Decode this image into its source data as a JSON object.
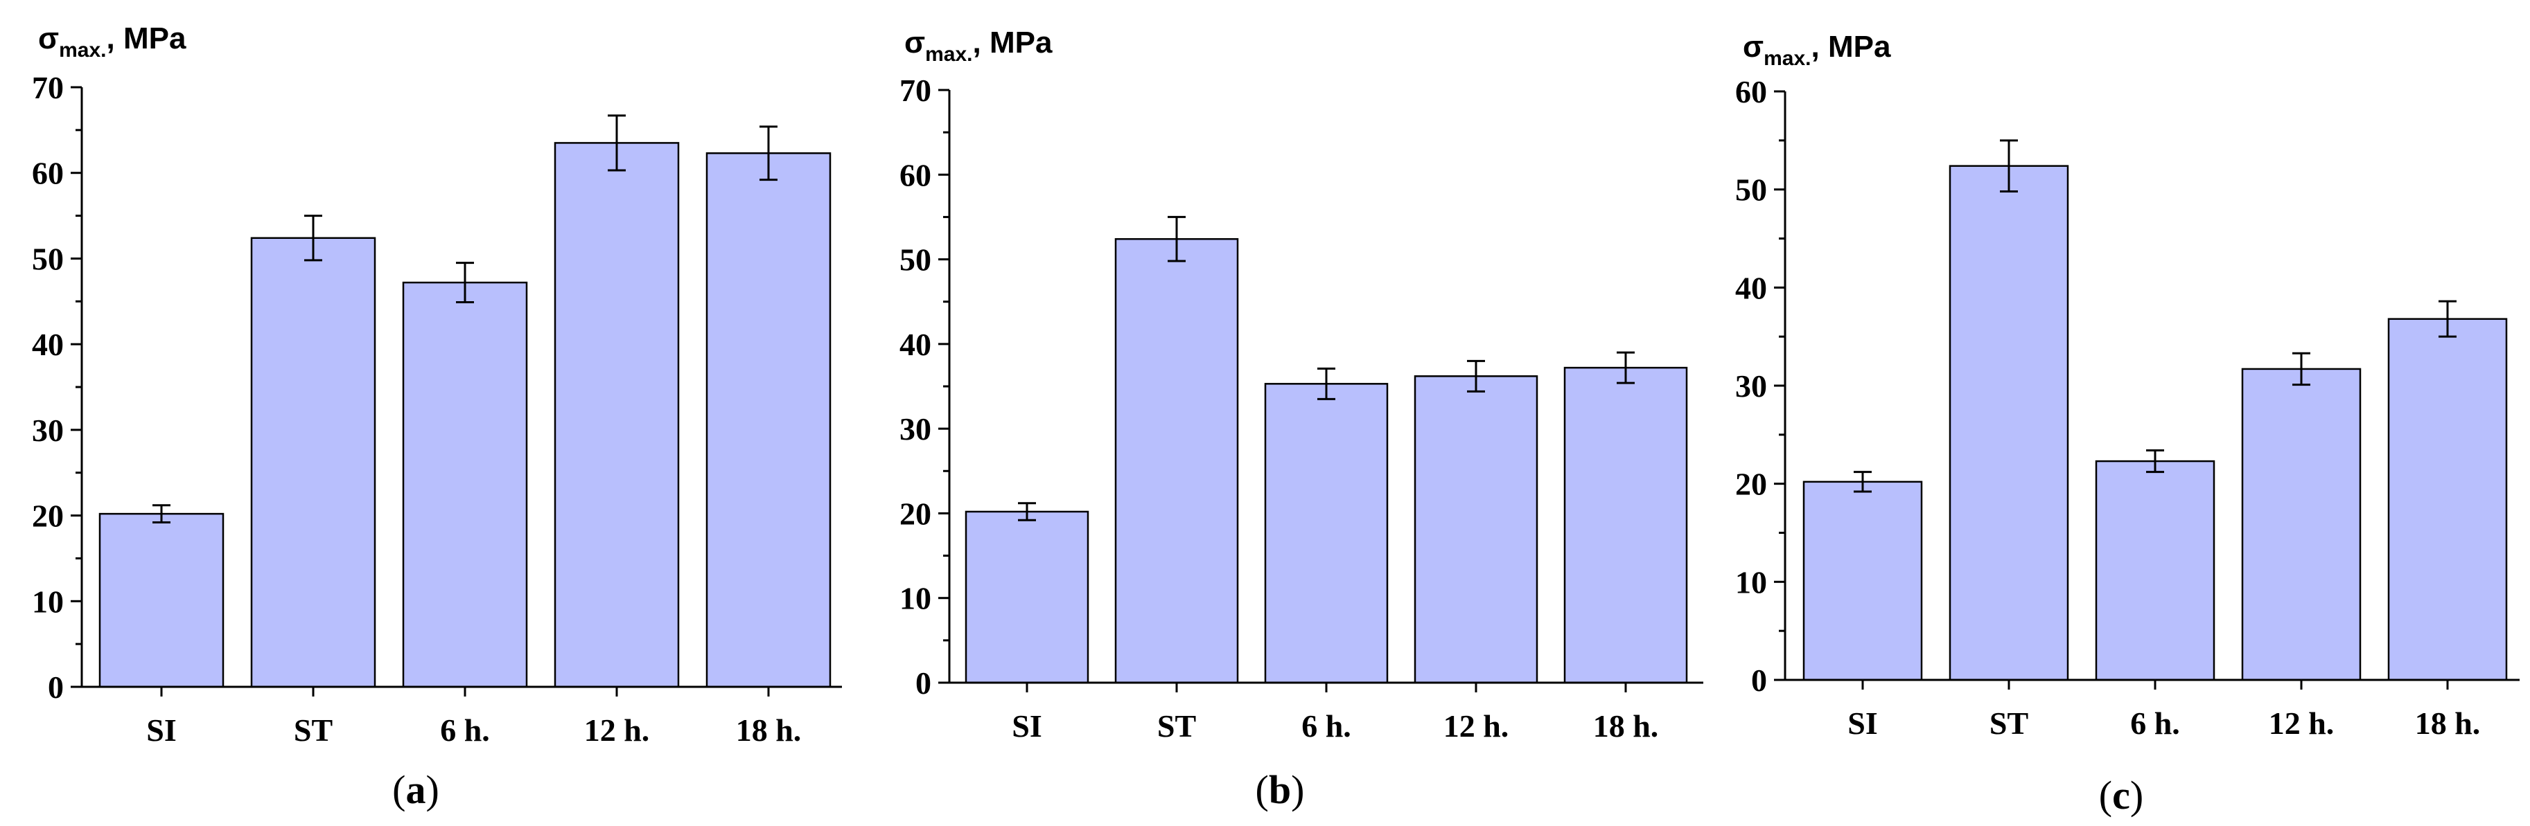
{
  "chart_data": [
    {
      "type": "bar",
      "panel_label": "a",
      "ylabel": {
        "symbol": "σ",
        "sub": "max.",
        "rest": ", MPa"
      },
      "categories": [
        "SI",
        "ST",
        "6 h.",
        "12 h.",
        "18 h."
      ],
      "values": [
        20.2,
        52.4,
        47.2,
        63.5,
        62.3
      ],
      "errors": [
        1.0,
        2.6,
        2.3,
        3.2,
        3.1
      ],
      "ylim": [
        0,
        70
      ],
      "yticks": [
        0,
        10,
        20,
        30,
        40,
        50,
        60,
        70
      ],
      "minor_ticks": true
    },
    {
      "type": "bar",
      "panel_label": "b",
      "ylabel": {
        "symbol": "σ",
        "sub": "max.",
        "rest": ", MPa"
      },
      "categories": [
        "SI",
        "ST",
        "6 h.",
        "12 h.",
        "18 h."
      ],
      "values": [
        20.2,
        52.4,
        35.3,
        36.2,
        37.2
      ],
      "errors": [
        1.0,
        2.6,
        1.8,
        1.8,
        1.8
      ],
      "ylim": [
        0,
        70
      ],
      "yticks": [
        0,
        10,
        20,
        30,
        40,
        50,
        60,
        70
      ],
      "minor_ticks": true
    },
    {
      "type": "bar",
      "panel_label": "c",
      "ylabel": {
        "symbol": "σ",
        "sub": "max.",
        "rest": ", MPa"
      },
      "categories": [
        "SI",
        "ST",
        "6 h.",
        "12 h.",
        "18 h."
      ],
      "values": [
        20.2,
        52.4,
        22.3,
        31.7,
        36.8
      ],
      "errors": [
        1.0,
        2.6,
        1.1,
        1.6,
        1.8
      ],
      "ylim": [
        0,
        60
      ],
      "yticks": [
        0,
        10,
        20,
        30,
        40,
        50,
        60
      ],
      "minor_ticks": true
    }
  ]
}
